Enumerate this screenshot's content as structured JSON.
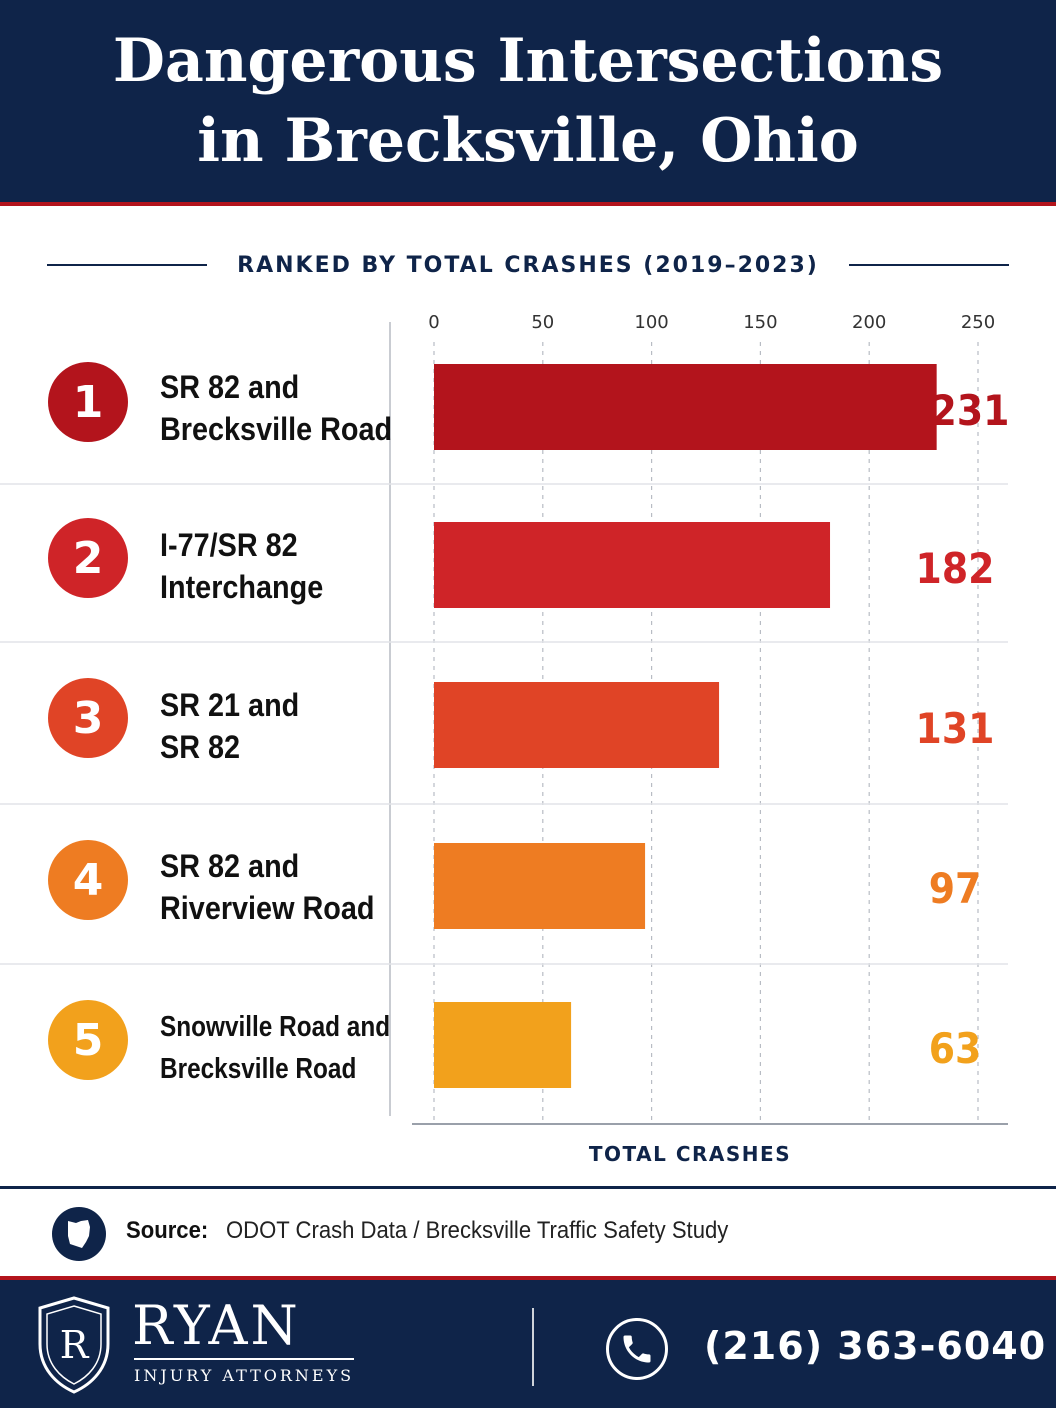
{
  "header": {
    "title_line1": "Dangerous Intersections",
    "title_line2": "in Brecksville, Ohio"
  },
  "subtitle": "RANKED BY TOTAL CRASHES (2019–2023)",
  "chart_data": {
    "type": "bar",
    "orientation": "horizontal",
    "title": "Dangerous Intersections in Brecksville, Ohio",
    "subtitle": "RANKED BY TOTAL CRASHES (2019–2023)",
    "xlabel": "TOTAL CRASHES",
    "ylabel": "",
    "xlim": [
      0,
      250
    ],
    "x_ticks": [
      0,
      50,
      100,
      150,
      200,
      250
    ],
    "grid": "vertical dashed",
    "categories": [
      {
        "rank": "1",
        "line1": "SR 82 and",
        "line2": "Brecksville Road"
      },
      {
        "rank": "2",
        "line1": "I-77/SR 82",
        "line2": "Interchange"
      },
      {
        "rank": "3",
        "line1": "SR 21 and",
        "line2": "SR 82"
      },
      {
        "rank": "4",
        "line1": "SR 82 and",
        "line2": "Riverview Road"
      },
      {
        "rank": "5",
        "line1": "Snowville Road and",
        "line2": "Brecksville Road"
      }
    ],
    "values": [
      231,
      182,
      131,
      97,
      63
    ],
    "colors": [
      "#b3141c",
      "#cf2428",
      "#e04426",
      "#ee7c22",
      "#f2a11c"
    ]
  },
  "source": {
    "label": "Source:",
    "text": "ODOT Crash Data / Brecksville Traffic Safety Study",
    "icon": "ohio-state-icon"
  },
  "footer": {
    "brand_initial": "R",
    "brand_name": "RYAN",
    "brand_tagline": "INJURY ATTORNEYS",
    "phone": "(216) 363-6040",
    "phone_icon": "phone-icon"
  },
  "colors": {
    "navy": "#0f2449",
    "red": "#b3141c"
  }
}
